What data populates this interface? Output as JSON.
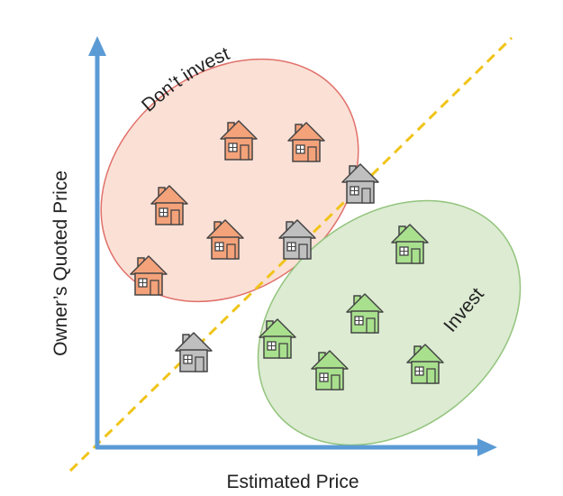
{
  "labels": {
    "x_axis": "Estimated Price",
    "y_axis": "Owner’s Quoted Price",
    "dont_invest": "Don’t invest",
    "invest": "Invest"
  },
  "colors": {
    "axis": "#5b9bd5",
    "divider": "#f0c419",
    "dont_invest_fill": "#fbe0d6",
    "dont_invest_stroke": "#e0716a",
    "invest_fill": "#dcebd2",
    "invest_stroke": "#93c47d",
    "house_dont_invest": "#f4a27a",
    "house_invest": "#a9e08e",
    "house_neutral": "#bfbfbf"
  },
  "houses": [
    {
      "group": "dont_invest",
      "icon": "house-icon"
    },
    {
      "group": "dont_invest",
      "icon": "house-icon"
    },
    {
      "group": "dont_invest",
      "icon": "house-icon"
    },
    {
      "group": "dont_invest",
      "icon": "house-icon"
    },
    {
      "group": "dont_invest",
      "icon": "house-icon"
    },
    {
      "group": "neutral",
      "icon": "house-icon"
    },
    {
      "group": "neutral",
      "icon": "house-icon"
    },
    {
      "group": "neutral",
      "icon": "house-icon"
    },
    {
      "group": "invest",
      "icon": "house-icon"
    },
    {
      "group": "invest",
      "icon": "house-icon"
    },
    {
      "group": "invest",
      "icon": "house-icon"
    },
    {
      "group": "invest",
      "icon": "house-icon"
    },
    {
      "group": "invest",
      "icon": "house-icon"
    }
  ]
}
